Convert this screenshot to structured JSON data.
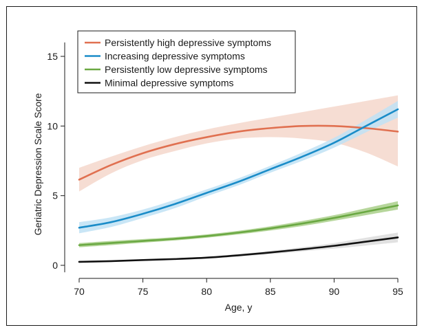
{
  "chart_data": {
    "type": "line",
    "title": "",
    "xlabel": "Age, y",
    "ylabel": "Geriatric Depression Scale Score",
    "xlim": [
      70,
      95
    ],
    "ylim": [
      -0.5,
      16
    ],
    "xticks": [
      70,
      75,
      80,
      85,
      90,
      95
    ],
    "yticks": [
      0,
      5,
      10,
      15
    ],
    "grid": false,
    "legend_position": "top-left",
    "series": [
      {
        "name": "Persistently high depressive symptoms",
        "color": "#e07050",
        "band_color": "#f3d2c4",
        "x": [
          70,
          72.5,
          75,
          77.5,
          80,
          82.5,
          85,
          87.5,
          90,
          92.5,
          95
        ],
        "y": [
          6.15,
          7.2,
          8.05,
          8.7,
          9.2,
          9.6,
          9.85,
          10.0,
          10.0,
          9.85,
          9.6
        ],
        "lower": [
          5.3,
          6.6,
          7.55,
          8.2,
          8.75,
          9.1,
          9.2,
          9.1,
          8.8,
          8.1,
          7.1
        ],
        "upper": [
          7.0,
          7.8,
          8.55,
          9.2,
          9.75,
          10.2,
          10.6,
          11.0,
          11.4,
          11.8,
          12.2
        ]
      },
      {
        "name": "Increasing depressive symptoms",
        "color": "#1a8cc8",
        "band_color": "#bfe2f4",
        "x": [
          70,
          72.5,
          75,
          77.5,
          80,
          82.5,
          85,
          87.5,
          90,
          92.5,
          95
        ],
        "y": [
          2.7,
          3.1,
          3.7,
          4.4,
          5.2,
          6.0,
          6.9,
          7.8,
          8.8,
          10.0,
          11.2
        ],
        "lower": [
          2.3,
          2.75,
          3.4,
          4.1,
          4.95,
          5.75,
          6.65,
          7.5,
          8.45,
          9.55,
          10.6
        ],
        "upper": [
          3.1,
          3.45,
          4.0,
          4.7,
          5.45,
          6.25,
          7.15,
          8.1,
          9.15,
          10.45,
          11.8
        ]
      },
      {
        "name": "Persistently low depressive symptoms",
        "color": "#6aa842",
        "band_color": "#a9cf8a",
        "x": [
          70,
          72.5,
          75,
          77.5,
          80,
          82.5,
          85,
          87.5,
          90,
          92.5,
          95
        ],
        "y": [
          1.45,
          1.6,
          1.75,
          1.9,
          2.1,
          2.35,
          2.65,
          3.0,
          3.4,
          3.85,
          4.3
        ],
        "lower": [
          1.3,
          1.45,
          1.62,
          1.78,
          1.98,
          2.22,
          2.5,
          2.82,
          3.2,
          3.6,
          4.0
        ],
        "upper": [
          1.6,
          1.75,
          1.88,
          2.02,
          2.22,
          2.48,
          2.8,
          3.18,
          3.6,
          4.1,
          4.6
        ]
      },
      {
        "name": "Minimal depressive symptoms",
        "color": "#111111",
        "band_color": "#dcdcdc",
        "x": [
          70,
          72.5,
          75,
          77.5,
          80,
          82.5,
          85,
          87.5,
          90,
          92.5,
          95
        ],
        "y": [
          0.25,
          0.3,
          0.38,
          0.45,
          0.55,
          0.72,
          0.92,
          1.15,
          1.4,
          1.7,
          2.0
        ],
        "lower": [
          0.18,
          0.24,
          0.32,
          0.39,
          0.48,
          0.63,
          0.8,
          1.0,
          1.2,
          1.42,
          1.65
        ],
        "upper": [
          0.32,
          0.36,
          0.44,
          0.51,
          0.62,
          0.81,
          1.04,
          1.3,
          1.6,
          1.98,
          2.35
        ]
      }
    ]
  }
}
